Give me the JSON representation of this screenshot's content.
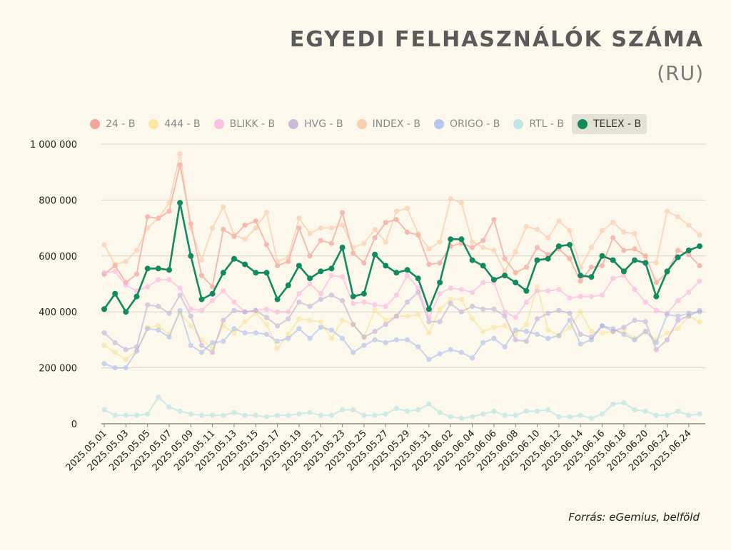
{
  "header": {
    "title": "EGYEDI FELHASZNÁLÓK SZÁMA",
    "subtitle": "(RU)"
  },
  "source": "Forrás: eGemius, belföld",
  "chart_data": {
    "type": "line",
    "title": "EGYEDI FELHASZNÁLÓK SZÁMA",
    "subtitle": "(RU)",
    "ylim": [
      0,
      1000000
    ],
    "yticks": [
      0,
      200000,
      400000,
      600000,
      800000,
      1000000
    ],
    "ytick_labels": [
      "0",
      "200 000",
      "400 000",
      "600 000",
      "800 000",
      "1 000 000"
    ],
    "grid": true,
    "legend_position": "top",
    "x": [
      "2025.05.01",
      "2025.05.02",
      "2025.05.03",
      "2025.05.04",
      "2025.05.05",
      "2025.05.06",
      "2025.05.07",
      "2025.05.08",
      "2025.05.09",
      "2025.05.10",
      "2025.05.11",
      "2025.05.12",
      "2025.05.13",
      "2025.05.14",
      "2025.05.15",
      "2025.05.16",
      "2025.05.17",
      "2025.05.18",
      "2025.05.19",
      "2025.05.20",
      "2025.05.21",
      "2025.05.22",
      "2025.05.23",
      "2025.05.24",
      "2025.05.25",
      "2025.05.26",
      "2025.05.27",
      "2025.05.28",
      "2025.05.29",
      "2025.05.30",
      "2025.05.31",
      "2025.06.01",
      "2025.06.02",
      "2025.06.03",
      "2025.06.04",
      "2025.06.05",
      "2025.06.06",
      "2025.06.07",
      "2025.06.08",
      "2025.06.09",
      "2025.06.10",
      "2025.06.11",
      "2025.06.12",
      "2025.06.13",
      "2025.06.14",
      "2025.06.15",
      "2025.06.16",
      "2025.06.17",
      "2025.06.18",
      "2025.06.19",
      "2025.06.20",
      "2025.06.21",
      "2025.06.22",
      "2025.06.23",
      "2025.06.24",
      "2025.06.25"
    ],
    "x_tick_labels": [
      "2025.05.01",
      "2025.05.03",
      "2025.05.05",
      "2025.05.07",
      "2025.05.09",
      "2025.05.11",
      "2025.05.13",
      "2025.05.15",
      "2025.05.17",
      "2025.05.19",
      "2025.05.21",
      "2025.05.23",
      "2025.05.25",
      "2025.05.27",
      "2025.05.29",
      "2025.05.31",
      "2025.06.02",
      "2025.06.04",
      "2025.06.06",
      "2025.06.08",
      "2025.06.10",
      "2025.06.12",
      "2025.06.14",
      "2025.06.16",
      "2025.06.18",
      "2025.06.20",
      "2025.06.22",
      "2025.06.24"
    ],
    "series": [
      {
        "name": "24 - B",
        "color": "#f08a80",
        "highlighted": false,
        "values": [
          535000,
          565000,
          505000,
          535000,
          740000,
          735000,
          760000,
          925000,
          715000,
          530000,
          490000,
          695000,
          670000,
          710000,
          725000,
          640000,
          565000,
          580000,
          700000,
          600000,
          655000,
          645000,
          755000,
          610000,
          575000,
          665000,
          720000,
          730000,
          685000,
          675000,
          570000,
          575000,
          635000,
          645000,
          630000,
          655000,
          730000,
          590000,
          540000,
          560000,
          630000,
          605000,
          625000,
          590000,
          510000,
          560000,
          565000,
          665000,
          620000,
          625000,
          600000,
          505000,
          540000,
          620000,
          605000,
          565000
        ]
      },
      {
        "name": "444 - B",
        "color": "#f9e08a",
        "highlighted": false,
        "values": [
          280000,
          255000,
          230000,
          260000,
          345000,
          350000,
          320000,
          395000,
          350000,
          300000,
          270000,
          350000,
          325000,
          365000,
          395000,
          355000,
          270000,
          320000,
          375000,
          370000,
          365000,
          305000,
          370000,
          355000,
          310000,
          405000,
          370000,
          385000,
          385000,
          390000,
          325000,
          410000,
          445000,
          445000,
          375000,
          330000,
          345000,
          350000,
          320000,
          355000,
          490000,
          335000,
          315000,
          345000,
          400000,
          330000,
          325000,
          330000,
          330000,
          305000,
          330000,
          300000,
          325000,
          340000,
          385000,
          365000
        ]
      },
      {
        "name": "BLIKK - B",
        "color": "#f7ade0",
        "highlighted": false,
        "values": [
          540000,
          545000,
          495000,
          475000,
          490000,
          515000,
          515000,
          485000,
          410000,
          405000,
          440000,
          475000,
          435000,
          400000,
          405000,
          410000,
          400000,
          400000,
          465000,
          500000,
          465000,
          530000,
          525000,
          430000,
          435000,
          425000,
          420000,
          460000,
          530000,
          485000,
          380000,
          465000,
          485000,
          480000,
          470000,
          505000,
          505000,
          400000,
          380000,
          435000,
          475000,
          475000,
          480000,
          450000,
          455000,
          455000,
          460000,
          520000,
          530000,
          480000,
          435000,
          405000,
          395000,
          440000,
          470000,
          510000
        ]
      },
      {
        "name": "HVG - B",
        "color": "#bca5d6",
        "highlighted": false,
        "values": [
          325000,
          290000,
          265000,
          275000,
          425000,
          420000,
          395000,
          460000,
          385000,
          280000,
          255000,
          370000,
          405000,
          400000,
          405000,
          380000,
          350000,
          375000,
          435000,
          420000,
          445000,
          460000,
          440000,
          355000,
          310000,
          330000,
          355000,
          385000,
          435000,
          470000,
          365000,
          365000,
          430000,
          400000,
          420000,
          410000,
          410000,
          385000,
          300000,
          295000,
          375000,
          395000,
          405000,
          395000,
          320000,
          310000,
          350000,
          330000,
          345000,
          370000,
          365000,
          265000,
          300000,
          370000,
          385000,
          405000
        ]
      },
      {
        "name": "INDEX - B",
        "color": "#f8c09c",
        "highlighted": false,
        "values": [
          640000,
          570000,
          580000,
          620000,
          700000,
          735000,
          790000,
          965000,
          700000,
          585000,
          700000,
          775000,
          675000,
          660000,
          700000,
          755000,
          580000,
          595000,
          735000,
          680000,
          700000,
          700000,
          710000,
          630000,
          645000,
          695000,
          650000,
          760000,
          770000,
          680000,
          625000,
          650000,
          805000,
          790000,
          650000,
          630000,
          620000,
          545000,
          615000,
          705000,
          695000,
          665000,
          725000,
          690000,
          560000,
          630000,
          690000,
          720000,
          685000,
          680000,
          580000,
          575000,
          760000,
          740000,
          710000,
          675000
        ]
      },
      {
        "name": "ORIGO - B",
        "color": "#9fb6ec",
        "highlighted": false,
        "values": [
          215000,
          200000,
          200000,
          260000,
          340000,
          335000,
          310000,
          405000,
          280000,
          255000,
          290000,
          295000,
          340000,
          325000,
          325000,
          320000,
          295000,
          305000,
          340000,
          305000,
          345000,
          335000,
          305000,
          255000,
          280000,
          300000,
          290000,
          300000,
          300000,
          275000,
          230000,
          250000,
          265000,
          255000,
          235000,
          290000,
          305000,
          275000,
          335000,
          330000,
          320000,
          305000,
          315000,
          370000,
          285000,
          300000,
          350000,
          340000,
          320000,
          300000,
          330000,
          290000,
          390000,
          385000,
          395000,
          400000
        ]
      },
      {
        "name": "RTL - B",
        "color": "#a6dfe3",
        "highlighted": false,
        "values": [
          50000,
          30000,
          30000,
          30000,
          35000,
          95000,
          60000,
          45000,
          35000,
          30000,
          30000,
          30000,
          40000,
          30000,
          30000,
          25000,
          30000,
          30000,
          35000,
          40000,
          30000,
          30000,
          50000,
          50000,
          30000,
          30000,
          35000,
          55000,
          45000,
          50000,
          70000,
          40000,
          25000,
          20000,
          25000,
          35000,
          45000,
          30000,
          30000,
          45000,
          45000,
          50000,
          25000,
          25000,
          30000,
          20000,
          35000,
          70000,
          75000,
          50000,
          45000,
          30000,
          30000,
          45000,
          30000,
          35000
        ]
      },
      {
        "name": "TELEX - B",
        "color": "#128a60",
        "highlighted": true,
        "values": [
          410000,
          465000,
          400000,
          455000,
          555000,
          555000,
          550000,
          790000,
          600000,
          445000,
          465000,
          540000,
          590000,
          570000,
          540000,
          540000,
          445000,
          495000,
          565000,
          520000,
          545000,
          555000,
          630000,
          455000,
          465000,
          605000,
          565000,
          540000,
          550000,
          520000,
          410000,
          505000,
          660000,
          660000,
          585000,
          565000,
          515000,
          530000,
          505000,
          475000,
          585000,
          590000,
          635000,
          640000,
          530000,
          525000,
          600000,
          585000,
          545000,
          585000,
          575000,
          455000,
          545000,
          595000,
          620000,
          635000
        ]
      }
    ]
  }
}
